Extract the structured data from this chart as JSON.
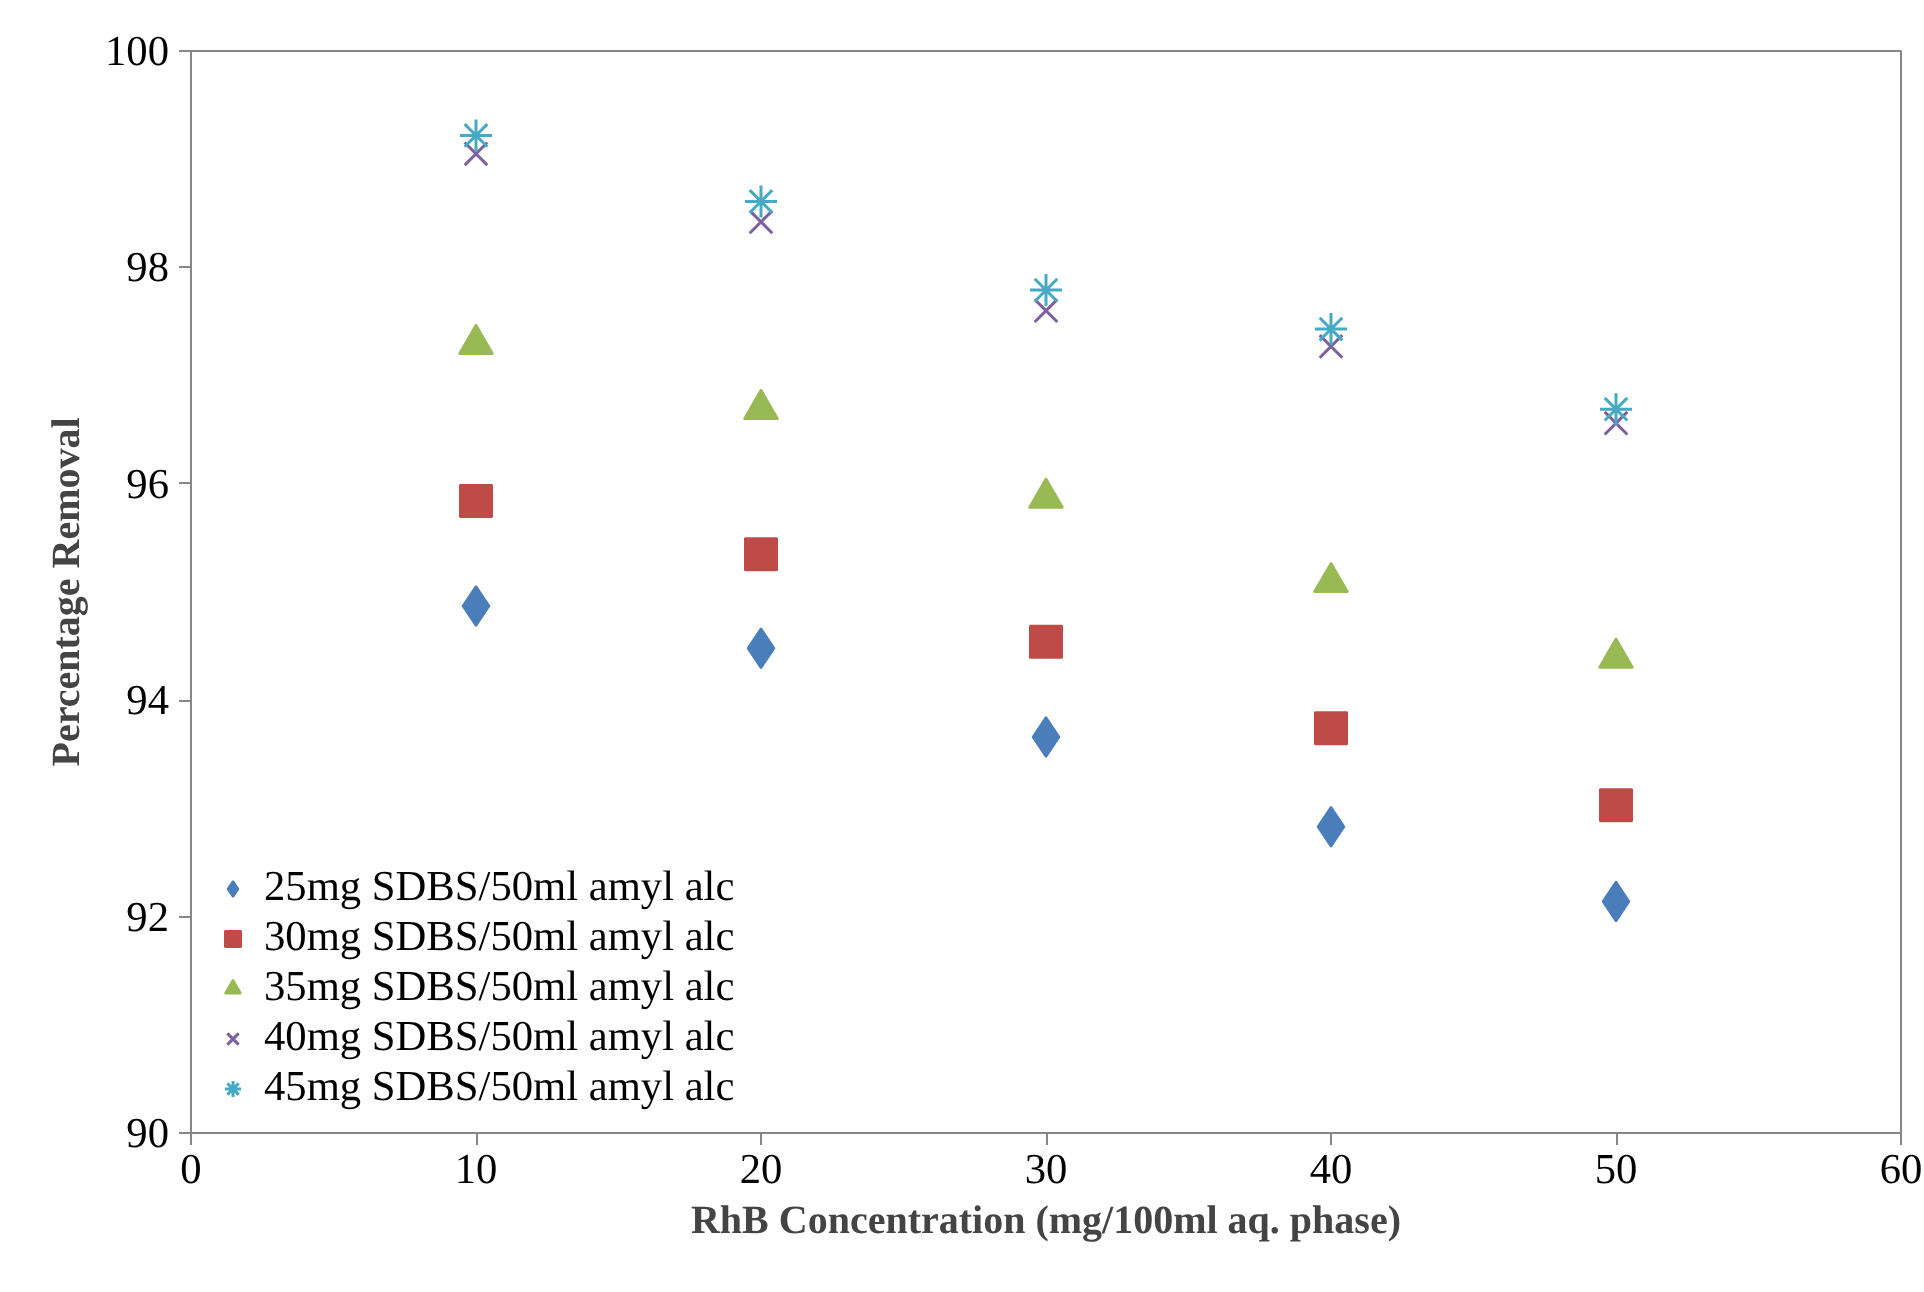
{
  "chart_data": {
    "type": "scatter",
    "xlabel": "RhB Concentration (mg/100ml aq. phase)",
    "ylabel": "Percentage Removal",
    "x": [
      10,
      20,
      30,
      40,
      50
    ],
    "series": [
      {
        "name": "25mg SDBS/50ml amyl alc",
        "color": "#4a7ebb",
        "marker": "diamond",
        "values": [
          94.87,
          94.48,
          93.66,
          92.83,
          92.14
        ]
      },
      {
        "name": "30mg SDBS/50ml amyl alc",
        "color": "#be4b48",
        "marker": "square",
        "values": [
          95.84,
          95.35,
          94.54,
          93.74,
          93.03
        ]
      },
      {
        "name": "35mg SDBS/50ml amyl alc",
        "color": "#98b954",
        "marker": "triangle",
        "values": [
          97.29,
          96.69,
          95.87,
          95.09,
          94.39
        ]
      },
      {
        "name": "40mg SDBS/50ml amyl alc",
        "color": "#7d60a0",
        "marker": "cross",
        "values": [
          99.05,
          98.42,
          97.6,
          97.27,
          96.56
        ]
      },
      {
        "name": "45mg SDBS/50ml amyl alc",
        "color": "#46aac5",
        "values": [
          99.22,
          98.61,
          97.79,
          97.43,
          96.69
        ]
      }
    ],
    "xlim": [
      0,
      60
    ],
    "xticks": [
      0,
      10,
      20,
      30,
      40,
      50,
      60
    ],
    "ylim": [
      90,
      100
    ],
    "yticks": [
      90,
      92,
      94,
      96,
      98,
      100
    ],
    "grid": false,
    "legend": "bottom left"
  }
}
